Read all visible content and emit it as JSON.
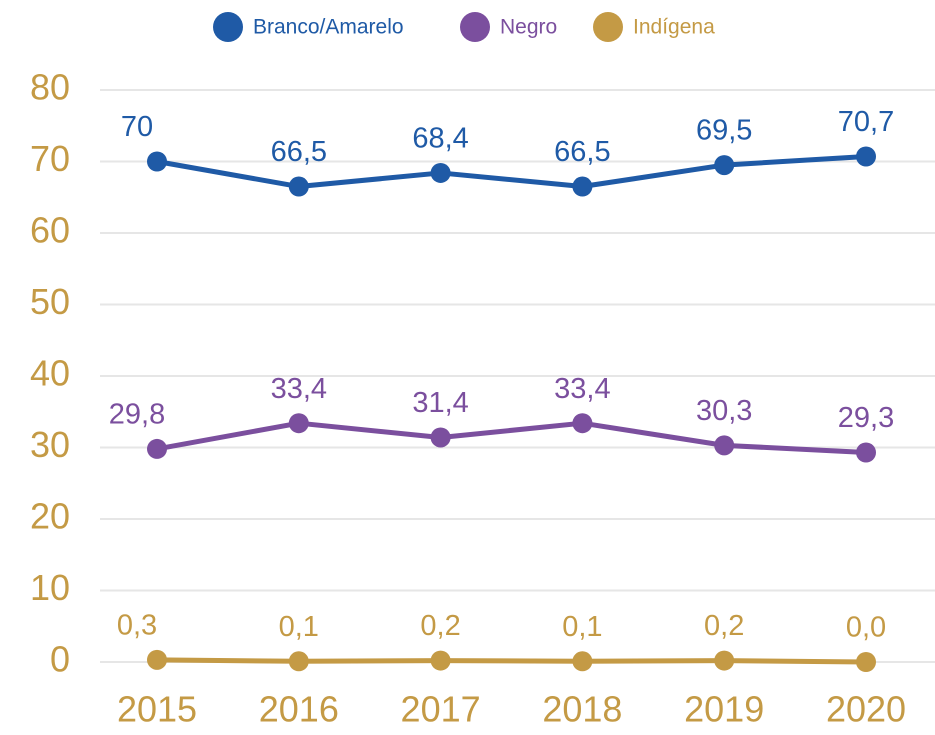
{
  "chart_data": {
    "type": "line",
    "categories": [
      "2015",
      "2016",
      "2017",
      "2018",
      "2019",
      "2020"
    ],
    "series": [
      {
        "name": "Branco/Amarelo",
        "color": "#1f5aa6",
        "values": [
          70,
          66.5,
          68.4,
          66.5,
          69.5,
          70.7
        ],
        "value_labels": [
          "70",
          "66,5",
          "68,4",
          "66,5",
          "69,5",
          "70,7"
        ]
      },
      {
        "name": "Negro",
        "color": "#7b4f9e",
        "values": [
          29.8,
          33.4,
          31.4,
          33.4,
          30.3,
          29.3
        ],
        "value_labels": [
          "29,8",
          "33,4",
          "31,4",
          "33,4",
          "30,3",
          "29,3"
        ]
      },
      {
        "name": "Indígena",
        "color": "#c49a45",
        "values": [
          0.3,
          0.1,
          0.2,
          0.1,
          0.2,
          0.0
        ],
        "value_labels": [
          "0,3",
          "0,1",
          "0,2",
          "0,1",
          "0,2",
          "0,0"
        ]
      }
    ],
    "ylim": [
      0,
      80
    ],
    "yticks": [
      0,
      10,
      20,
      30,
      40,
      50,
      60,
      70,
      80
    ],
    "grid": true,
    "legend": "top",
    "tick_color": "#c49a45"
  }
}
